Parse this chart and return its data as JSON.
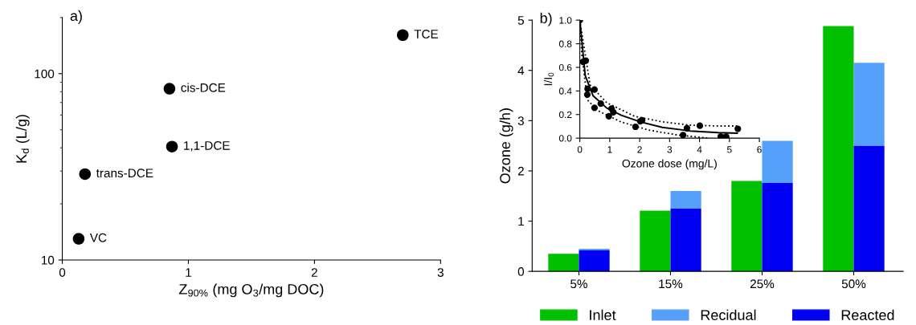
{
  "chart_data": [
    {
      "type": "scatter",
      "title": "a)",
      "xlabel": "Z$_{90%}$ (mg O$_{3}$/mg DOC)",
      "ylabel": "K$_{d}$ (L/g)",
      "log": "y",
      "xlim": [
        0,
        3
      ],
      "xticks": [
        0,
        1,
        2,
        3
      ],
      "ylim": [
        10,
        200
      ],
      "yticks": [
        10,
        100
      ],
      "marker": "circle",
      "grid": false,
      "legend": false,
      "series": [
        {
          "color": "#000000",
          "x": [
            2.7,
            0.85,
            0.87,
            0.18,
            0.13
          ],
          "values": [
            161,
            83,
            40.6,
            28.9,
            13
          ]
        }
      ],
      "annotations": [
        {
          "text": "TCE",
          "x": 2.7,
          "y": 161
        },
        {
          "text": "cis-DCE",
          "x": 0.85,
          "y": 83
        },
        {
          "text": "1,1-DCE",
          "x": 0.87,
          "y": 40.6
        },
        {
          "text": "trans-DCE",
          "x": 0.18,
          "y": 28.9
        },
        {
          "text": "VC",
          "x": 0.13,
          "y": 13
        }
      ]
    },
    {
      "type": "bar",
      "title": "b)",
      "ylabel": "Ozone (g/h)",
      "categories": [
        "5%",
        "15%",
        "25%",
        "50%"
      ],
      "ylim": [
        0,
        5
      ],
      "yticks": [
        0,
        1,
        2,
        3,
        4,
        5
      ],
      "legend": "bottom",
      "grid": false,
      "series": [
        {
          "name": "Inlet",
          "color": "#00c000",
          "values": [
            0.35,
            1.21,
            1.8,
            4.88
          ]
        },
        {
          "name": "Recidual",
          "color": "#55a0fa",
          "values": [
            0.03,
            0.35,
            0.84,
            1.65
          ],
          "base": [
            0.42,
            1.25,
            1.76,
            2.5
          ]
        },
        {
          "name": "Reacted",
          "color": "#0000f5",
          "values": [
            0.42,
            1.25,
            1.76,
            2.5
          ]
        }
      ]
    },
    {
      "type": "scatter",
      "xlabel": "Ozone dose (mg/L)",
      "ylabel": "I/I$_{0}$",
      "xlim": [
        0,
        6
      ],
      "xticks": [
        0,
        1,
        2,
        3,
        4,
        5,
        6
      ],
      "ylim": [
        0,
        1
      ],
      "yticks": [
        {
          "value": 0,
          "label": "0.0"
        },
        {
          "value": 0.2,
          "label": "0.2"
        },
        {
          "value": 0.4,
          "label": "0.4"
        },
        {
          "value": 0.6,
          "label": "0.6"
        },
        {
          "value": 0.8,
          "label": "0.8"
        },
        {
          "value": 1,
          "label": "1.0"
        }
      ],
      "grid": false,
      "legend": false,
      "series": [
        {
          "type": "line",
          "line_style": "solid",
          "color": "#000000",
          "x": [
            0,
            0.18,
            0.44,
            0.9,
            1.37,
            2.02,
            2.76,
            3.69,
            4.62,
            5.26
          ],
          "values": [
            1.0,
            0.53,
            0.36,
            0.255,
            0.196,
            0.138,
            0.091,
            0.061,
            0.047,
            0.042
          ]
        },
        {
          "type": "line",
          "line_style": "dotted",
          "color": "#000000",
          "x": [
            0,
            0.34,
            0.9,
            1.83,
            2.76,
            3.69,
            4.62,
            5.26
          ],
          "values": [
            1.0,
            0.453,
            0.3,
            0.185,
            0.138,
            0.11,
            0.103,
            0.103
          ]
        },
        {
          "type": "line",
          "line_style": "dotted",
          "color": "#000000",
          "x": [
            0,
            0.07,
            0.25,
            0.62,
            1.37,
            2.3,
            3.23,
            4.3
          ],
          "values": [
            1.0,
            0.7,
            0.325,
            0.231,
            0.138,
            0.068,
            0.028,
            0.0
          ]
        },
        {
          "type": "scatter",
          "marker": "circle",
          "color": "#000000",
          "x": [
            0,
            0.11,
            0.2,
            0.26,
            0.25,
            0.49,
            0.49,
            0.7,
            1.06,
            1.12,
            0.97,
            1.86,
            2.02,
            2.08,
            3.45,
            3.58,
            4.01,
            4.71,
            4.89,
            5.28
          ],
          "values": [
            1.0,
            0.646,
            0.657,
            0.418,
            0.369,
            0.411,
            0.257,
            0.292,
            0.25,
            0.22,
            0.185,
            0.096,
            0.143,
            0.152,
            0.026,
            0.084,
            0.105,
            0.014,
            0.012,
            0.079
          ]
        }
      ]
    }
  ]
}
